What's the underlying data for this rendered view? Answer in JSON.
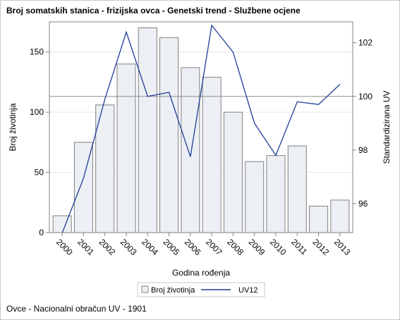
{
  "title": "Broj somatskih stanica - frizijska ovca - Genetski trend - Službene ocjene",
  "footnote": "Ovce - Nacionalni obračun UV - 1901",
  "chart_data": {
    "type": "bar",
    "categories": [
      "2000",
      "2001",
      "2002",
      "2003",
      "2004",
      "2005",
      "2006",
      "2007",
      "2008",
      "2009",
      "2010",
      "2011",
      "2012",
      "2013"
    ],
    "bars": {
      "name": "Broj životinja",
      "values": [
        14,
        75,
        106,
        140,
        170,
        162,
        137,
        129,
        100,
        59,
        64,
        72,
        22,
        27
      ],
      "color": "#eceff4",
      "stroke": "#808080"
    },
    "line": {
      "name": "UV12",
      "values": [
        94.9,
        96.95,
        99.9,
        102.4,
        100.0,
        100.15,
        97.75,
        102.65,
        101.65,
        99.0,
        97.8,
        99.8,
        99.7,
        100.45
      ],
      "color": "#1f3c99"
    },
    "reference_line": {
      "axis": "y2",
      "value": 100,
      "color": "#8c8c8c"
    },
    "xlabel": "Godina rođenja",
    "ylabel": "Broj životinja",
    "y2label": "Standardizirana UV",
    "ylim": [
      0,
      175
    ],
    "yticks": [
      0,
      50,
      100,
      150
    ],
    "y2lim": [
      94.92,
      102.78
    ],
    "y2ticks": [
      96,
      98,
      100,
      102
    ],
    "legend": {
      "position": "bottom-center",
      "entries": [
        "Broj životinja",
        "UV12"
      ]
    },
    "grid": true
  }
}
